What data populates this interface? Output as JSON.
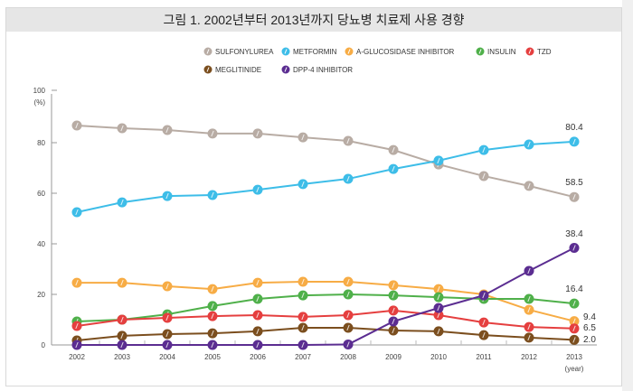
{
  "chart_data": {
    "type": "line",
    "title": "그림 1. 2002년부터 2013년까지 당뇨병 치료제 사용 경향",
    "ylabel": "(%)",
    "xlabel": "(year)",
    "ylim": [
      0,
      100
    ],
    "yticks": [
      0,
      20,
      40,
      60,
      80,
      100
    ],
    "grid": false,
    "legend_position": "top-right",
    "categories": [
      "2002",
      "2003",
      "2004",
      "2005",
      "2006",
      "2007",
      "2008",
      "2009",
      "2010",
      "2011",
      "2012",
      "2013"
    ],
    "series": [
      {
        "name": "SULFONYLUREA",
        "color": "#b8aca4",
        "values": [
          86.8,
          85.7,
          85.0,
          83.6,
          83.6,
          82.1,
          80.7,
          77.1,
          71.4,
          66.8,
          62.9,
          58.5
        ],
        "end_label": "58.5"
      },
      {
        "name": "METFORMIN",
        "color": "#3dbde8",
        "values": [
          52.5,
          56.4,
          58.9,
          59.3,
          61.4,
          63.6,
          65.7,
          69.6,
          72.9,
          77.1,
          79.3,
          80.4
        ],
        "end_label": "80.4"
      },
      {
        "name": "A-GLUCOSIDASE INHIBITOR",
        "color": "#f7ac45",
        "values": [
          24.6,
          24.6,
          23.2,
          22.1,
          24.6,
          25.0,
          25.0,
          23.6,
          22.1,
          20.0,
          13.9,
          9.4
        ],
        "end_label": "9.4"
      },
      {
        "name": "INSULIN",
        "color": "#4fb04a",
        "values": [
          9.3,
          10.0,
          12.1,
          15.4,
          18.2,
          19.6,
          20.0,
          19.6,
          18.9,
          18.2,
          18.2,
          16.4
        ],
        "end_label": "16.4"
      },
      {
        "name": "TZD",
        "color": "#e53f3f",
        "values": [
          7.5,
          10.0,
          10.7,
          11.4,
          11.8,
          11.1,
          11.8,
          13.6,
          11.8,
          8.9,
          7.1,
          6.5
        ],
        "end_label": "6.5"
      },
      {
        "name": "MEGLITINIDE",
        "color": "#7b4e1e",
        "values": [
          1.8,
          3.6,
          4.3,
          4.6,
          5.4,
          6.8,
          6.8,
          5.7,
          5.4,
          3.9,
          2.9,
          2.0
        ],
        "end_label": "2.0"
      },
      {
        "name": "DPP-4 INHIBITOR",
        "color": "#5b2d91",
        "values": [
          0,
          0,
          0,
          0,
          0,
          0,
          0.2,
          9.3,
          14.6,
          19.6,
          29.3,
          38.4
        ],
        "end_label": "38.4"
      }
    ]
  }
}
